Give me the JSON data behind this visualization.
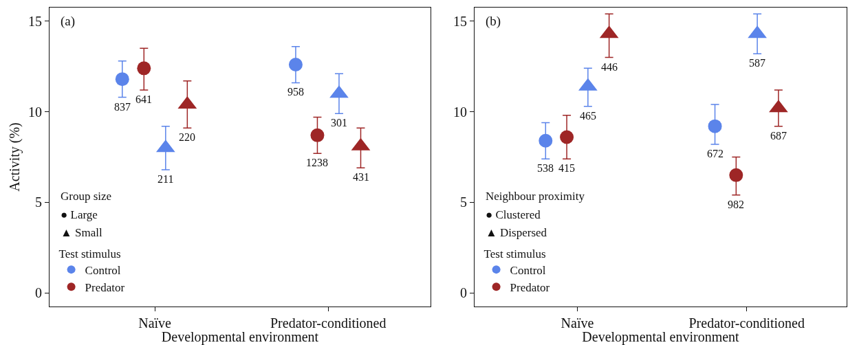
{
  "chart_data": [
    {
      "type": "scatter",
      "title": "(a)",
      "categories": [
        "Naïve",
        "Predator-conditioned"
      ],
      "xlabel": "Developmental environment",
      "ylabel": "Activity (%)",
      "ylim": [
        -0.75,
        15.75
      ],
      "yticks": [
        0,
        5,
        10,
        15
      ],
      "legend": "bottom left",
      "legend_title": "Test stimulus",
      "annotations": [
        "Group size",
        "● Large",
        "▲ Small",
        "837",
        "958",
        "641",
        "1238",
        "211",
        "301",
        "220",
        "431"
      ],
      "series": [
        {
          "name": "Control",
          "color": "#5b84ea",
          "marker": "circle",
          "values": [
            11.8,
            12.6
          ],
          "errors": [
            [
              10.8,
              12.8
            ],
            [
              11.6,
              13.6
            ]
          ]
        },
        {
          "name": "Predator",
          "color": "#9e2626",
          "marker": "circle",
          "values": [
            12.4,
            8.7
          ],
          "errors": [
            [
              11.2,
              13.5
            ],
            [
              7.7,
              9.7
            ]
          ]
        },
        {
          "color": "#5b84ea",
          "marker": "triangle",
          "values": [
            8.0,
            11.0
          ],
          "errors": [
            [
              6.8,
              9.2
            ],
            [
              9.9,
              12.1
            ]
          ]
        },
        {
          "color": "#9e2626",
          "marker": "triangle",
          "values": [
            10.4,
            8.1
          ],
          "errors": [
            [
              9.1,
              11.7
            ],
            [
              6.9,
              9.1
            ]
          ]
        }
      ]
    },
    {
      "type": "scatter",
      "title": "(b)",
      "categories": [
        "Naïve",
        "Predator-conditioned"
      ],
      "xlabel": "Developmental environment",
      "ylim": [
        -0.75,
        15.75
      ],
      "yticks": [
        0,
        5,
        10,
        15
      ],
      "legend": "bottom left",
      "legend_title": "Test stimulus",
      "annotations": [
        "Neighbour proximity",
        "● Clustered",
        "▲ Dispersed",
        "538",
        "672",
        "415",
        "982",
        "465",
        "587",
        "446",
        "687"
      ],
      "series": [
        {
          "name": "Control",
          "color": "#5b84ea",
          "marker": "circle",
          "values": [
            8.4,
            9.2
          ],
          "errors": [
            [
              7.4,
              9.4
            ],
            [
              8.2,
              10.4
            ]
          ]
        },
        {
          "name": "Predator",
          "color": "#9e2626",
          "marker": "circle",
          "values": [
            8.6,
            6.5
          ],
          "errors": [
            [
              7.4,
              9.8
            ],
            [
              5.4,
              7.5
            ]
          ]
        },
        {
          "color": "#5b84ea",
          "marker": "triangle",
          "values": [
            11.4,
            14.3
          ],
          "errors": [
            [
              10.3,
              12.4
            ],
            [
              13.2,
              15.4
            ]
          ]
        },
        {
          "color": "#9e2626",
          "marker": "triangle",
          "values": [
            14.3,
            10.2
          ],
          "errors": [
            [
              13.0,
              15.4
            ],
            [
              9.2,
              11.2
            ]
          ]
        }
      ]
    }
  ]
}
